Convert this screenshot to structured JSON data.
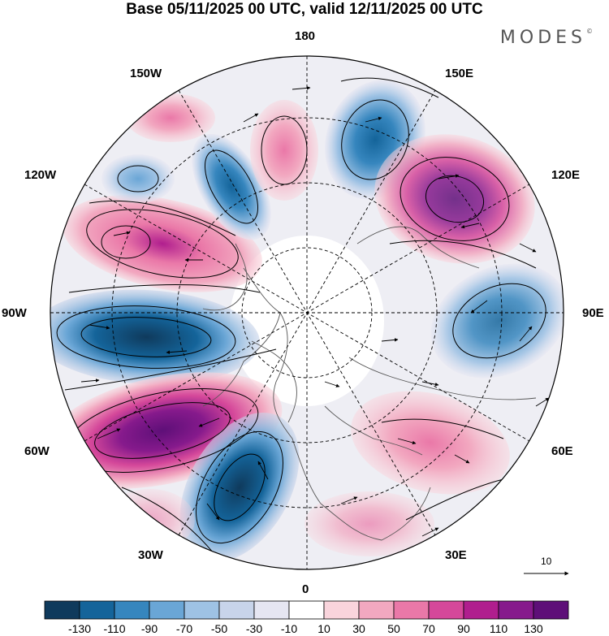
{
  "title": "Base 05/11/2025 00 UTC, valid 12/11/2025 00 UTC",
  "brand": "MODES",
  "brand_mark": "©",
  "longitude_labels": {
    "top": "180",
    "upper_left": "150W",
    "upper_right": "150E",
    "left_upper": "120W",
    "right_upper": "120E",
    "left": "90W",
    "right": "90E",
    "left_lower": "60W",
    "right_lower": "60E",
    "lower_left": "30W",
    "lower_right": "30E",
    "bottom": "0"
  },
  "vector_reference": {
    "label": "10"
  },
  "colorbar": {
    "colors": [
      "#0f3a5c",
      "#14649a",
      "#3686be",
      "#6aa6d6",
      "#9ec2e4",
      "#c8d4ea",
      "#e6e6f2",
      "#ffffff",
      "#f9d4dc",
      "#f2a8c0",
      "#ea78a8",
      "#d5489a",
      "#b01e8e",
      "#861a8c",
      "#5e0f78"
    ],
    "tick_labels": [
      "-130",
      "-110",
      "-90",
      "-70",
      "-50",
      "-30",
      "-10",
      "10",
      "30",
      "50",
      "70",
      "90",
      "110",
      "130"
    ]
  },
  "anomaly_features": [
    {
      "sign": "negative",
      "strength": 5,
      "region": "90W-120W mid latitudes"
    },
    {
      "sign": "positive",
      "strength": 6,
      "region": "60W-80W mid latitudes"
    },
    {
      "sign": "negative",
      "strength": 4,
      "region": "30W-40W mid latitudes"
    },
    {
      "sign": "positive",
      "strength": 4,
      "region": "110W-130W mid latitudes"
    },
    {
      "sign": "negative",
      "strength": 2,
      "region": "150W-160W"
    },
    {
      "sign": "positive",
      "strength": 2,
      "region": "170W-180"
    },
    {
      "sign": "negative",
      "strength": 3,
      "region": "160E-170E"
    },
    {
      "sign": "positive",
      "strength": 4,
      "region": "120E-130E"
    },
    {
      "sign": "negative",
      "strength": 2,
      "region": "85E-100E"
    },
    {
      "sign": "positive",
      "strength": 2,
      "region": "50E-60E"
    }
  ]
}
